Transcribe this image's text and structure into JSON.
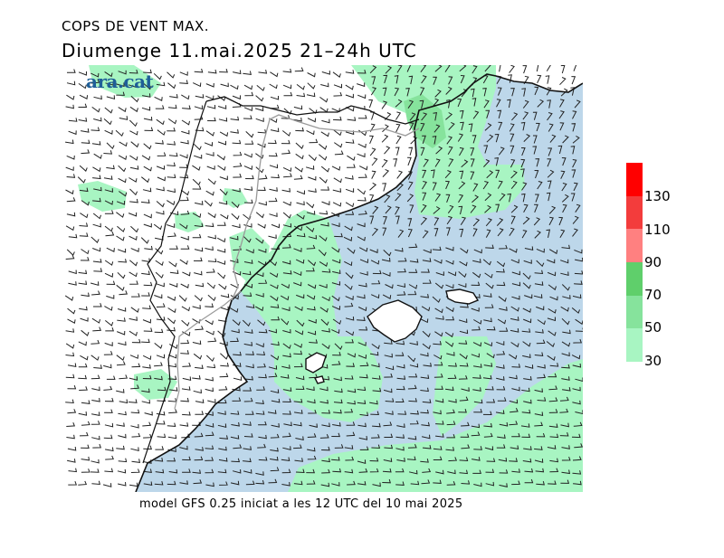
{
  "title": "COPS DE VENT MAX.",
  "subtitle": "Diumenge  11.mai.2025  21–24h  UTC",
  "logo": "ara.cat",
  "footer": "model GFS 0.25 iniciat a les 12 UTC del 10 mai 2025",
  "map": {
    "sea_color": "#bdd7ea",
    "land_color": "#ffffff",
    "coast_color": "#111111",
    "border_color": "#9a9a9a",
    "barb_color": "#222222",
    "gust_colors": {
      "30-50": "#a8f5c2",
      "50-70": "#86e39c",
      "70-90": "#5fcf6b"
    }
  },
  "colorbar": {
    "labels": [
      "130",
      "110",
      "90",
      "70",
      "50",
      "30"
    ],
    "segments": [
      {
        "from": 150,
        "to": 130,
        "color": "#ff0000"
      },
      {
        "from": 130,
        "to": 110,
        "color": "#f33c3c"
      },
      {
        "from": 110,
        "to": 90,
        "color": "#ff8080"
      },
      {
        "from": 90,
        "to": 70,
        "color": "#5fcf6b"
      },
      {
        "from": 70,
        "to": 50,
        "color": "#86e39c"
      },
      {
        "from": 50,
        "to": 30,
        "color": "#a8f5c2"
      }
    ]
  }
}
